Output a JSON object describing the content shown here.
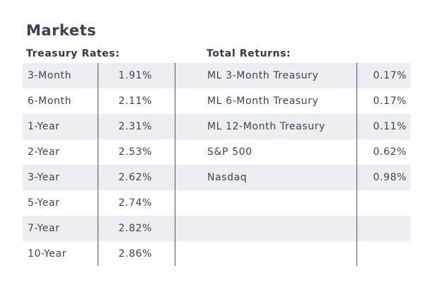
{
  "title": "Markets",
  "treasury": {
    "heading": "Treasury Rates:",
    "rows": [
      {
        "label": "3-Month",
        "value": "1.91%"
      },
      {
        "label": "6-Month",
        "value": "2.11%"
      },
      {
        "label": "1-Year",
        "value": "2.31%"
      },
      {
        "label": "2-Year",
        "value": "2.53%"
      },
      {
        "label": "3-Year",
        "value": "2.62%"
      },
      {
        "label": "5-Year",
        "value": "2.74%"
      },
      {
        "label": "7-Year",
        "value": "2.82%"
      },
      {
        "label": "10-Year",
        "value": "2.86%"
      }
    ]
  },
  "returns": {
    "heading": "Total Returns:",
    "rows": [
      {
        "label": "ML 3-Month Treasury",
        "value": "0.17%"
      },
      {
        "label": "ML 6-Month Treasury",
        "value": "0.17%"
      },
      {
        "label": "ML 12-Month Treasury",
        "value": "0.11%"
      },
      {
        "label": "S&P 500",
        "value": "0.62%"
      },
      {
        "label": "Nasdaq",
        "value": "0.98%"
      },
      {
        "label": "",
        "value": ""
      },
      {
        "label": "",
        "value": ""
      },
      {
        "label": "",
        "value": ""
      }
    ]
  },
  "colors": {
    "row_shade": "#eceef2",
    "text": "#3b4550",
    "divider": "#4a5460"
  }
}
